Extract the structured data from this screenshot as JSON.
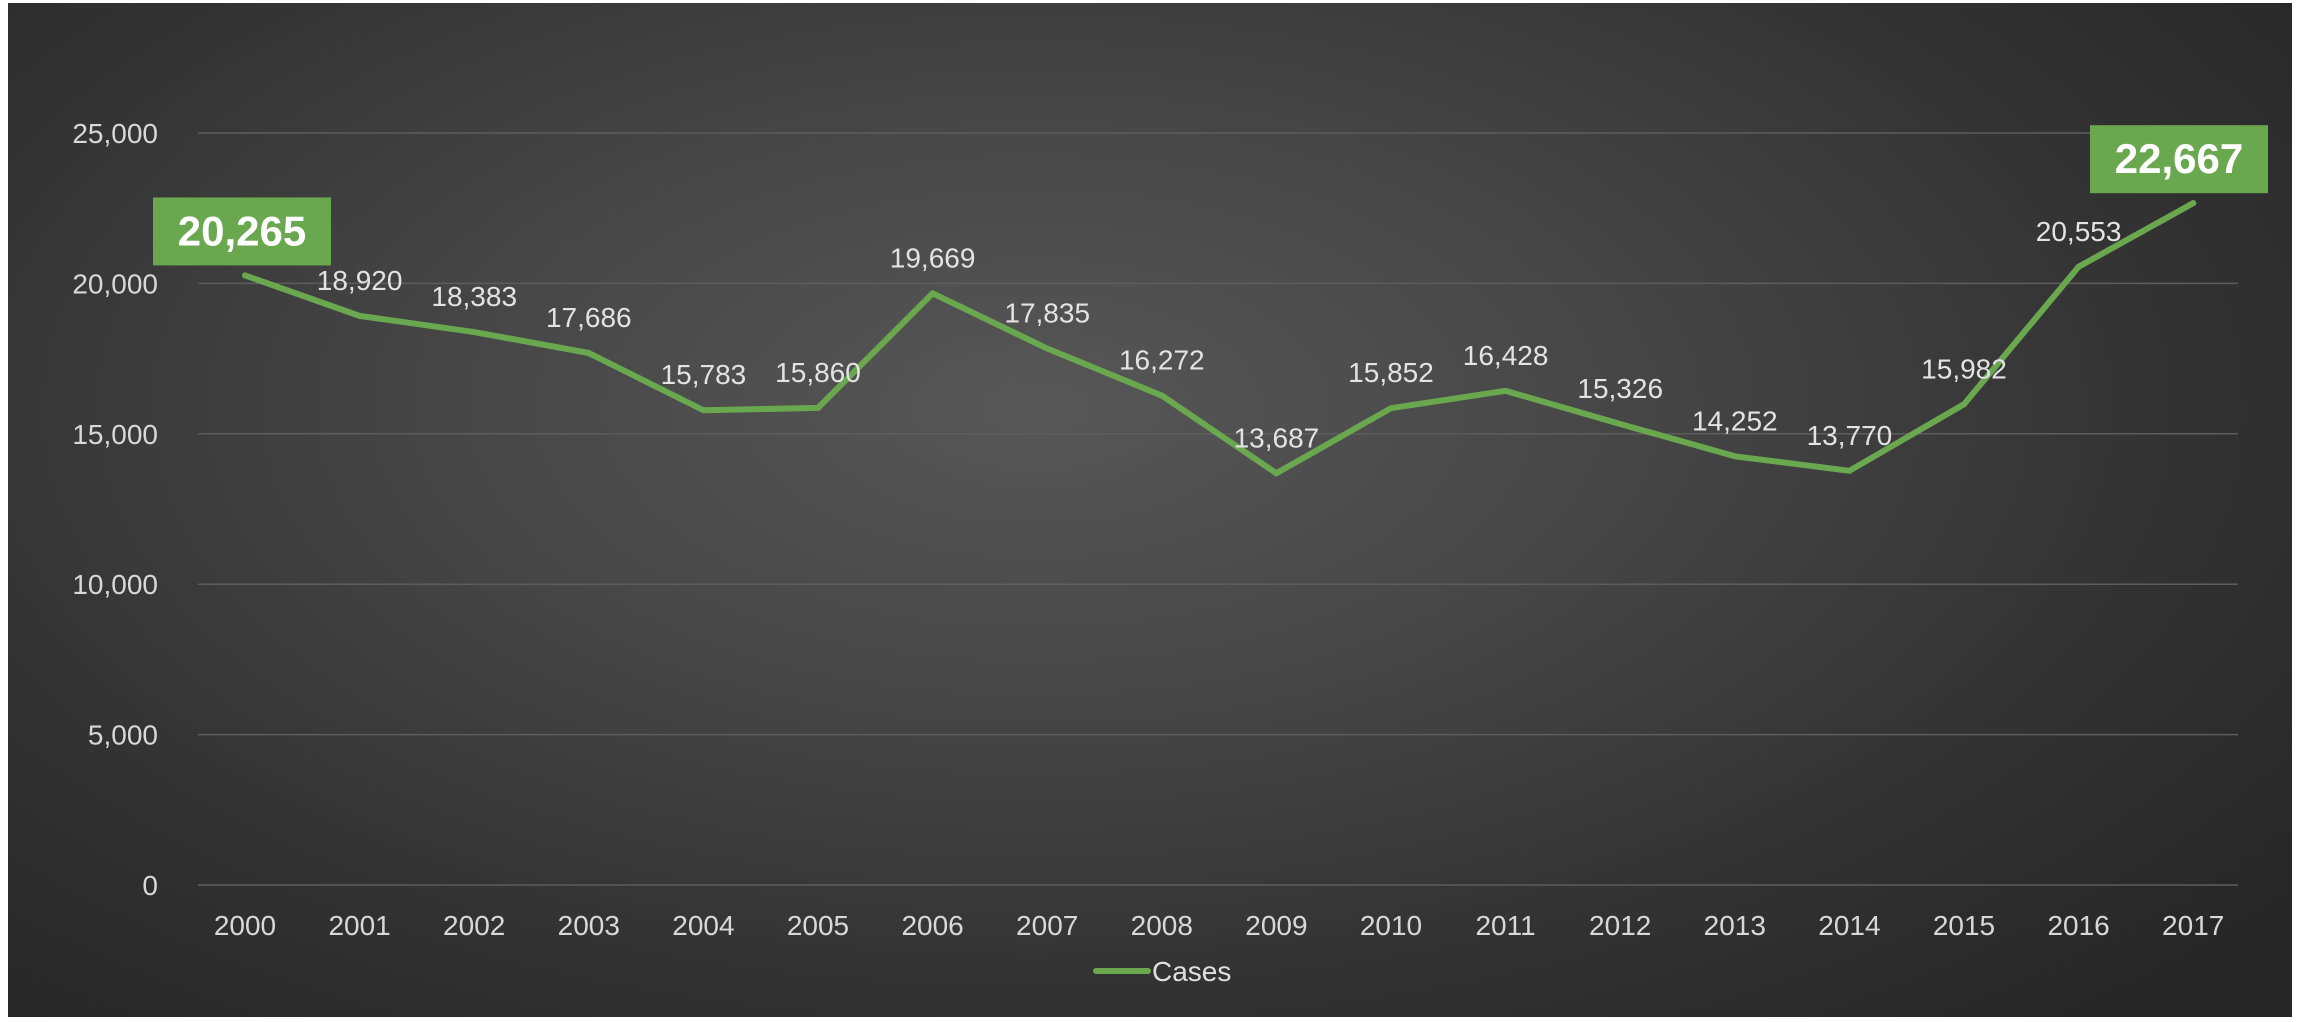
{
  "chart_data": {
    "type": "line",
    "categories": [
      "2000",
      "2001",
      "2002",
      "2003",
      "2004",
      "2005",
      "2006",
      "2007",
      "2008",
      "2009",
      "2010",
      "2011",
      "2012",
      "2013",
      "2014",
      "2015",
      "2016",
      "2017"
    ],
    "series": [
      {
        "name": "Cases",
        "values": [
          20265,
          18920,
          18383,
          17686,
          15783,
          15860,
          19669,
          17835,
          16272,
          13687,
          15852,
          16428,
          15326,
          14252,
          13770,
          15982,
          20553,
          22667
        ],
        "color": "#6aa84f"
      }
    ],
    "data_labels": [
      "20,265",
      "18,920",
      "18,383",
      "17,686",
      "15,783",
      "15,860",
      "19,669",
      "17,835",
      "16,272",
      "13,687",
      "15,852",
      "16,428",
      "15,326",
      "14,252",
      "13,770",
      "15,982",
      "20,553",
      "22,667"
    ],
    "highlighted_points": [
      0,
      17
    ],
    "highlight_color": "#6aa84f",
    "ylim": [
      0,
      25000
    ],
    "y_ticks": [
      0,
      5000,
      10000,
      15000,
      20000,
      25000
    ],
    "y_tick_labels": [
      "0",
      "5,000",
      "10,000",
      "15,000",
      "20,000",
      "25,000"
    ],
    "grid": true,
    "legend": {
      "position": "bottom",
      "entries": [
        "Cases"
      ]
    },
    "title": "",
    "xlabel": "",
    "ylabel": ""
  }
}
